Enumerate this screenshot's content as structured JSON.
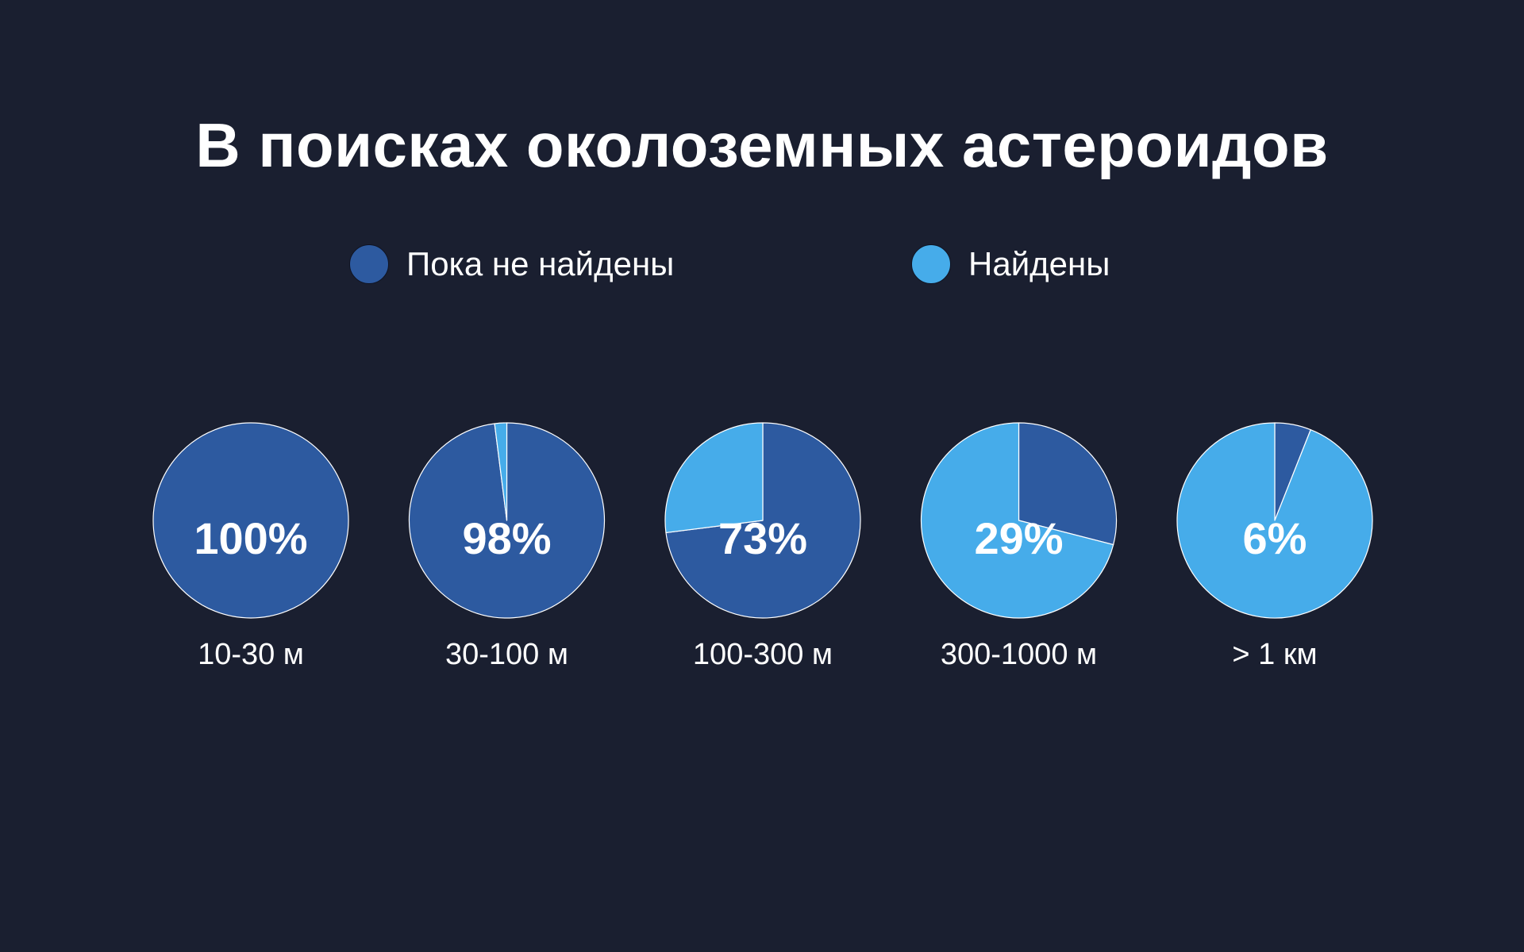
{
  "chart_data": {
    "type": "pie",
    "title": "В поисках околоземных астероидов",
    "legend": [
      {
        "name": "Пока не найдены",
        "color": "#2d5aa0"
      },
      {
        "name": "Найдены",
        "color": "#46acea"
      }
    ],
    "legend_placement": "top-center",
    "pies": [
      {
        "category": "10-30 м",
        "label": "100%",
        "unfound": 100,
        "found": 0
      },
      {
        "category": "30-100 м",
        "label": "98%",
        "unfound": 98,
        "found": 2
      },
      {
        "category": "100-300 м",
        "label": "73%",
        "unfound": 73,
        "found": 27
      },
      {
        "category": "300-1000 м",
        "label": "29%",
        "unfound": 29,
        "found": 71
      },
      {
        "category": "> 1 км",
        "label": "6%",
        "unfound": 6,
        "found": 94
      }
    ]
  }
}
